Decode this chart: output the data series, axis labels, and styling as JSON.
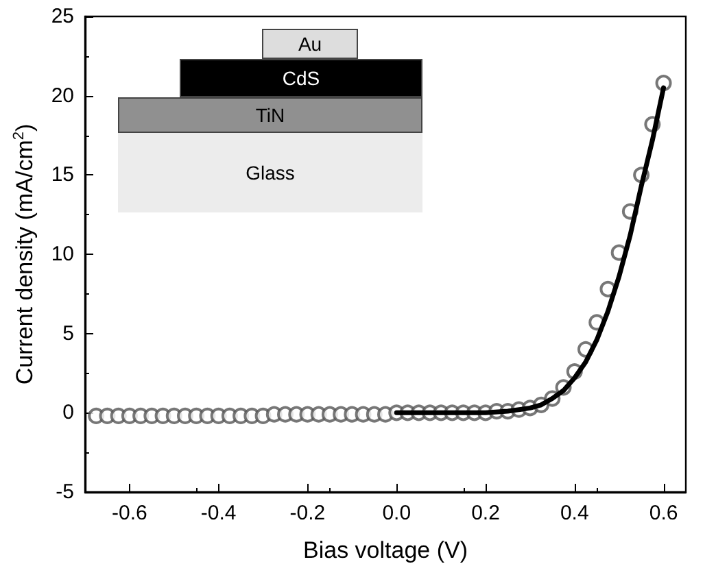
{
  "chart_data": {
    "type": "scatter",
    "xlabel": "Bias voltage (V)",
    "ylabel": "Current density (mA/cm$^{2}$)",
    "xlim": [
      -0.7,
      0.65
    ],
    "xticks": [
      -0.6,
      -0.4,
      -0.2,
      {
        "value": 0,
        "label": "0.0"
      },
      0.2,
      0.4,
      0.6
    ],
    "ylim": [
      -5,
      25
    ],
    "yticks": [
      -5,
      0,
      5,
      10,
      15,
      20,
      25
    ],
    "grid": false,
    "annotations": [
      "Au",
      "CdS",
      "TiN",
      "Glass"
    ],
    "series": [
      {
        "marker": "circle",
        "color": "#555555",
        "x": [
          -0.675,
          -0.65,
          -0.625,
          -0.6,
          -0.575,
          -0.55,
          -0.525,
          -0.5,
          -0.475,
          -0.45,
          -0.425,
          -0.4,
          -0.375,
          -0.35,
          -0.325,
          -0.3,
          -0.275,
          -0.25,
          -0.225,
          -0.2,
          -0.175,
          -0.15,
          -0.125,
          -0.1,
          -0.075,
          -0.05,
          -0.025,
          0.0,
          0.025,
          0.05,
          0.075,
          0.1,
          0.125,
          0.15,
          0.175,
          0.2,
          0.225,
          0.25,
          0.275,
          0.3,
          0.325,
          0.35,
          0.375,
          0.4,
          0.425,
          0.45,
          0.475,
          0.5,
          0.525,
          0.55,
          0.575,
          0.6
        ],
        "values": [
          -0.2,
          -0.2,
          -0.2,
          -0.2,
          -0.2,
          -0.2,
          -0.2,
          -0.2,
          -0.2,
          -0.2,
          -0.2,
          -0.2,
          -0.2,
          -0.2,
          -0.2,
          -0.2,
          -0.1,
          -0.1,
          -0.1,
          -0.1,
          -0.1,
          -0.1,
          -0.1,
          -0.1,
          -0.1,
          -0.1,
          -0.1,
          0,
          0,
          0,
          0,
          0,
          0,
          0,
          0,
          0,
          0.1,
          0.1,
          0.2,
          0.3,
          0.5,
          0.9,
          1.6,
          2.6,
          4.0,
          5.7,
          7.8,
          10.1,
          12.7,
          15.0,
          18.2,
          20.8
        ]
      },
      {
        "type": "line",
        "marker": "none",
        "color": "#000000",
        "line_style": "solid",
        "x": [
          0,
          0.1,
          0.2,
          0.25,
          0.3,
          0.325,
          0.35,
          0.375,
          0.4,
          0.425,
          0.45,
          0.475,
          0.5,
          0.525,
          0.55,
          0.575,
          0.6
        ],
        "values": [
          0,
          0,
          0,
          0.1,
          0.3,
          0.5,
          0.9,
          1.4,
          2.2,
          3.2,
          4.6,
          6.4,
          8.6,
          11.2,
          14.3,
          17.2,
          20.5
        ]
      }
    ]
  }
}
